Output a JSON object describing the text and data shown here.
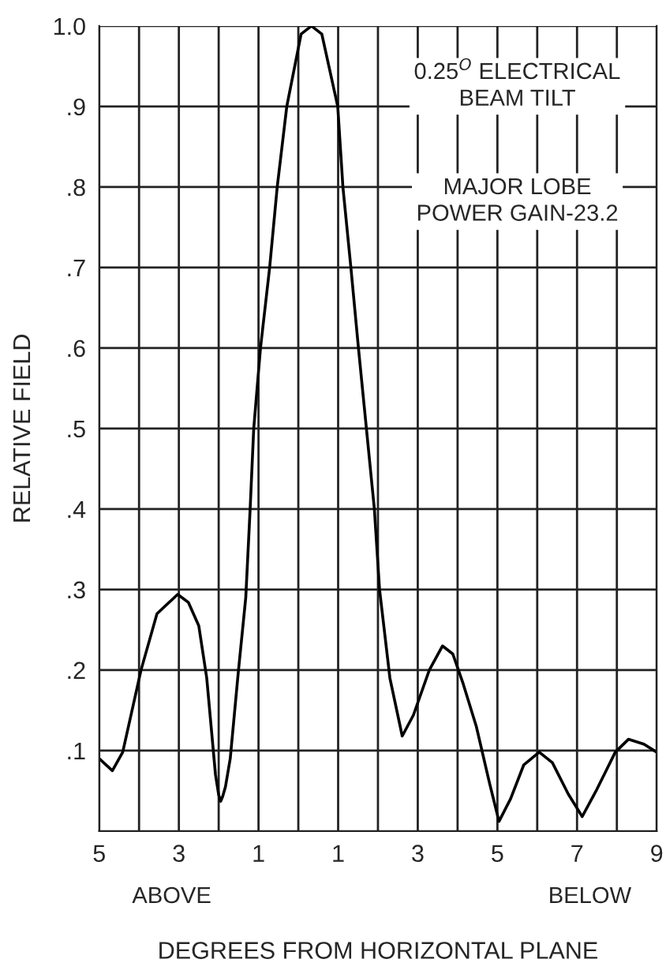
{
  "chart_data": {
    "type": "line",
    "xlabel": "DEGREES FROM HORIZONTAL PLANE",
    "ylabel": "RELATIVE FIELD",
    "annotations": [
      "0.25$^{O}$ ELECTRICAL\nBEAM TILT",
      "MAJOR LOBE\nPOWER GAIN-23.2",
      "ABOVE",
      "BELOW"
    ],
    "series": [
      {
        "color": "#000000",
        "x": [
          -5,
          -4.67,
          -4.41,
          -3.95,
          -3.55,
          -3.03,
          -2.76,
          -2.5,
          -2.3,
          -2.08,
          -2.0,
          -1.95,
          -1.9,
          -1.83,
          -1.71,
          -1.51,
          -1.32,
          -1.21,
          -1.12,
          -0.95,
          -0.72,
          -0.53,
          -0.29,
          0.07,
          0.33,
          0.59,
          0.99,
          1.12,
          1.32,
          1.51,
          1.71,
          1.91,
          2.04,
          2.3,
          2.61,
          2.89,
          3.29,
          3.62,
          3.88,
          4.14,
          4.47,
          4.8,
          5.04,
          5.33,
          5.66,
          6.05,
          6.38,
          6.78,
          7.13,
          7.5,
          7.96,
          8.29,
          8.68,
          9
        ],
        "values": [
          0.09,
          0.075,
          0.098,
          0.2,
          0.27,
          0.294,
          0.284,
          0.255,
          0.19,
          0.07,
          0.045,
          0.037,
          0.043,
          0.055,
          0.09,
          0.196,
          0.29,
          0.4,
          0.5,
          0.6,
          0.7,
          0.8,
          0.9,
          0.99,
          1.0,
          0.99,
          0.9,
          0.8,
          0.7,
          0.6,
          0.5,
          0.4,
          0.3,
          0.19,
          0.118,
          0.144,
          0.2,
          0.23,
          0.22,
          0.183,
          0.13,
          0.06,
          0.012,
          0.04,
          0.082,
          0.098,
          0.085,
          0.046,
          0.018,
          0.052,
          0.098,
          0.114,
          0.108,
          0.098
        ]
      }
    ],
    "xlim": [
      -5,
      9
    ],
    "ylim": [
      0,
      1.0
    ],
    "xticks": [
      {
        "value": -5,
        "label": "5"
      },
      {
        "value": -4,
        "label": null
      },
      {
        "value": -3,
        "label": "3"
      },
      {
        "value": -2,
        "label": null
      },
      {
        "value": -1,
        "label": "1"
      },
      {
        "value": 0,
        "label": null
      },
      {
        "value": 1,
        "label": "1"
      },
      {
        "value": 2,
        "label": null
      },
      {
        "value": 3,
        "label": "3"
      },
      {
        "value": 4,
        "label": null
      },
      {
        "value": 5,
        "label": "5"
      },
      {
        "value": 6,
        "label": null
      },
      {
        "value": 7,
        "label": "7"
      },
      {
        "value": 8,
        "label": null
      },
      {
        "value": 9,
        "label": "9"
      }
    ],
    "yticks": [
      {
        "value": 0.1,
        "label": ".1"
      },
      {
        "value": 0.2,
        "label": ".2"
      },
      {
        "value": 0.3,
        "label": ".3"
      },
      {
        "value": 0.4,
        "label": ".4"
      },
      {
        "value": 0.5,
        "label": ".5"
      },
      {
        "value": 0.6,
        "label": ".6"
      },
      {
        "value": 0.7,
        "label": ".7"
      },
      {
        "value": 0.8,
        "label": ".8"
      },
      {
        "value": 0.9,
        "label": ".9"
      },
      {
        "value": 1.0,
        "label": "1.0"
      }
    ],
    "grid": true,
    "line_style": "solid"
  }
}
